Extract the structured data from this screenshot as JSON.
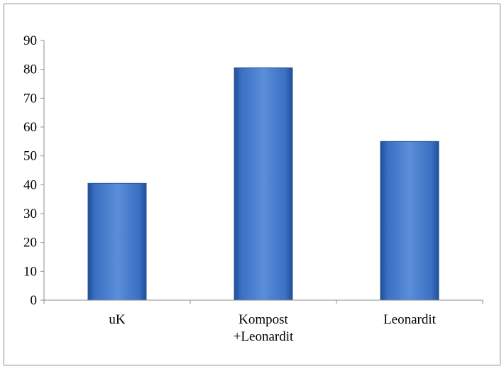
{
  "chart_data": {
    "type": "bar",
    "title": "",
    "xlabel": "",
    "ylabel": "",
    "categories": [
      [
        "uK"
      ],
      [
        "Kompost",
        "+Leonardit"
      ],
      [
        "Leonardit"
      ]
    ],
    "values": [
      40.5,
      80.5,
      55
    ],
    "ylim": [
      0,
      90
    ],
    "yticks": [
      0,
      10,
      20,
      30,
      40,
      50,
      60,
      70,
      80,
      90
    ],
    "grid": false,
    "legend": "none",
    "colors": {
      "bar_light": "#5b8fd9",
      "bar_mid": "#3a6fc2",
      "bar_dark": "#1f4f98",
      "bar_border": "#2b5797",
      "axis": "#8c8c8c"
    }
  }
}
